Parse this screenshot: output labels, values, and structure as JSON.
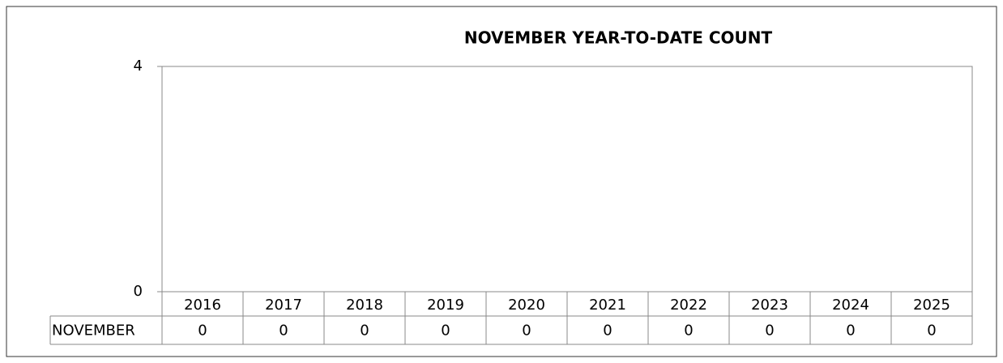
{
  "chart_data": {
    "type": "bar",
    "title": "NOVEMBER YEAR-TO-DATE COUNT",
    "categories": [
      "2016",
      "2017",
      "2018",
      "2019",
      "2020",
      "2021",
      "2022",
      "2023",
      "2024",
      "2025"
    ],
    "series": [
      {
        "name": "NOVEMBER",
        "color": "#4472c4",
        "values": [
          0,
          0,
          0,
          0,
          0,
          0,
          0,
          0,
          0,
          0
        ]
      }
    ],
    "ylim": [
      0,
      4
    ],
    "yticks": [
      0,
      4
    ],
    "grid": true
  }
}
